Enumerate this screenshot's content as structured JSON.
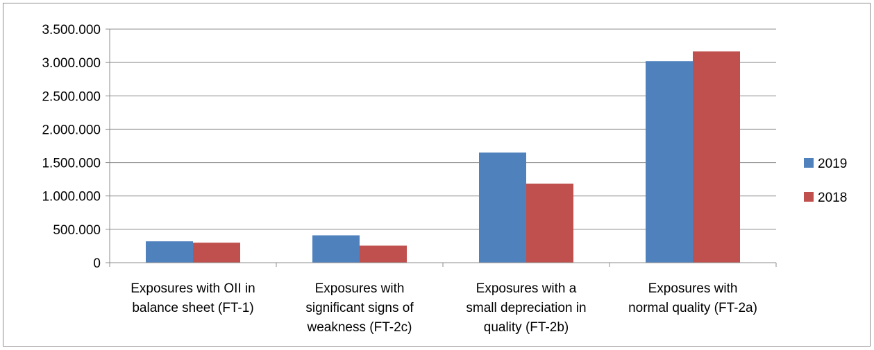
{
  "chart_data": {
    "type": "bar",
    "categories": [
      "Exposures with OII in balance sheet (FT-1)",
      "Exposures with significant signs of weakness (FT-2c)",
      "Exposures with a small depreciation in quality (FT-2b)",
      "Exposures with normal quality (FT-2a)"
    ],
    "category_label_lines": [
      [
        "Exposures with OII in",
        "balance sheet (FT-1)"
      ],
      [
        "Exposures with",
        "significant signs of",
        "weakness (FT-2c)"
      ],
      [
        "Exposures with a",
        "small depreciation in",
        "quality (FT-2b)"
      ],
      [
        "Exposures with",
        "normal quality (FT-2a)"
      ]
    ],
    "series": [
      {
        "name": "2019",
        "color": "#4f81bd",
        "values": [
          320000,
          410000,
          1650000,
          3020000
        ]
      },
      {
        "name": "2018",
        "color": "#c0504d",
        "values": [
          300000,
          255000,
          1185000,
          3165000
        ]
      }
    ],
    "ylim": [
      0,
      3500000
    ],
    "yticks": [
      0,
      500000,
      1000000,
      1500000,
      2000000,
      2500000,
      3000000,
      3500000
    ],
    "ytick_labels": [
      "0",
      "500.000",
      "1.000.000",
      "1.500.000",
      "2.000.000",
      "2.500.000",
      "3.000.000",
      "3.500.000"
    ],
    "grid": true,
    "legend_position": "right",
    "title": "",
    "xlabel": "",
    "ylabel": ""
  }
}
